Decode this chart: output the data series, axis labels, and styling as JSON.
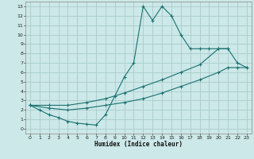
{
  "title": "",
  "xlabel": "Humidex (Indice chaleur)",
  "bg_color": "#cce8e8",
  "grid_color": "#aacccc",
  "line_color": "#1a7070",
  "xlim": [
    -0.5,
    23.5
  ],
  "ylim": [
    -0.5,
    13.5
  ],
  "xticks": [
    0,
    1,
    2,
    3,
    4,
    5,
    6,
    7,
    8,
    9,
    10,
    11,
    12,
    13,
    14,
    15,
    16,
    17,
    18,
    19,
    20,
    21,
    22,
    23
  ],
  "yticks": [
    0,
    1,
    2,
    3,
    4,
    5,
    6,
    7,
    8,
    9,
    10,
    11,
    12,
    13
  ],
  "line1_x": [
    0,
    1,
    2,
    3,
    4,
    5,
    6,
    7,
    8,
    9,
    10,
    11,
    12,
    13,
    14,
    15,
    16,
    17,
    18,
    19,
    20,
    21
  ],
  "line1_y": [
    2.5,
    2.0,
    1.5,
    1.2,
    0.8,
    0.6,
    0.5,
    0.4,
    1.5,
    3.5,
    5.5,
    7.0,
    13.0,
    11.5,
    13.0,
    12.0,
    10.0,
    8.5,
    8.5,
    8.5,
    8.5,
    8.5
  ],
  "line2_x": [
    0,
    2,
    4,
    6,
    8,
    10,
    12,
    14,
    16,
    18,
    20,
    21,
    22,
    23
  ],
  "line2_y": [
    2.5,
    2.5,
    2.5,
    2.8,
    3.2,
    3.8,
    4.5,
    5.2,
    6.0,
    6.8,
    8.5,
    8.5,
    7.0,
    6.5
  ],
  "line3_x": [
    0,
    2,
    4,
    6,
    8,
    10,
    12,
    14,
    16,
    18,
    20,
    21,
    22,
    23
  ],
  "line3_y": [
    2.5,
    2.2,
    2.0,
    2.2,
    2.5,
    2.8,
    3.2,
    3.8,
    4.5,
    5.2,
    6.0,
    6.5,
    6.5,
    6.5
  ]
}
